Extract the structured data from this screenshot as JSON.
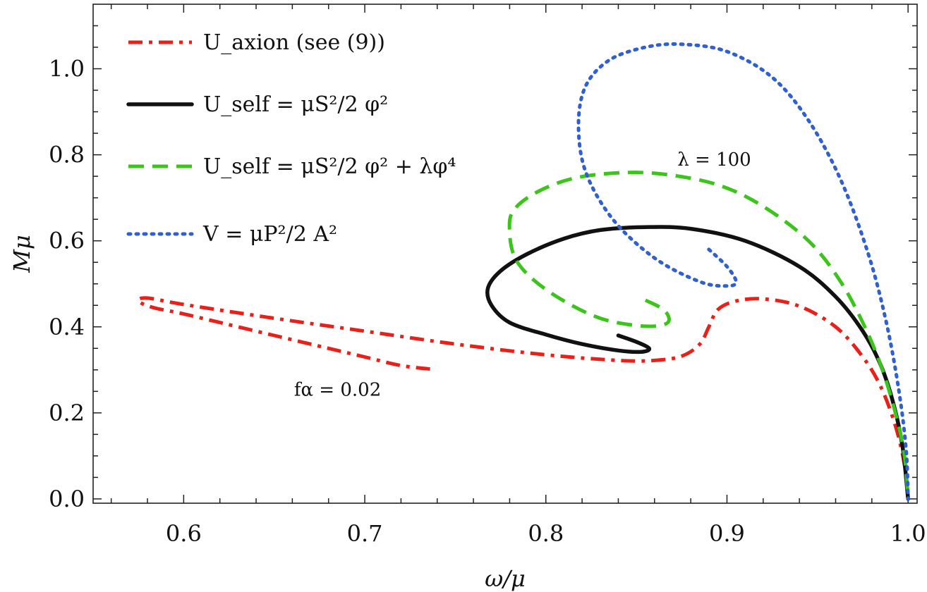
{
  "chart_data": {
    "type": "line",
    "xlabel": "ω/μ",
    "ylabel": "Mμ",
    "xlim": [
      0.55,
      1.005
    ],
    "ylim": [
      -0.01,
      1.15
    ],
    "xticks": [
      0.6,
      0.7,
      0.8,
      0.9,
      1.0
    ],
    "xtick_labels": [
      "0.6",
      "0.7",
      "0.8",
      "0.9",
      "1.0"
    ],
    "yticks": [
      0.0,
      0.2,
      0.4,
      0.6,
      0.8,
      1.0
    ],
    "ytick_labels": [
      "0.0",
      "0.2",
      "0.4",
      "0.6",
      "0.8",
      "1.0"
    ],
    "legend_position": "top-left",
    "annotations": [
      {
        "text": "λ = 100",
        "x": 0.893,
        "y": 0.775
      },
      {
        "text": "fα = 0.02",
        "x": 0.685,
        "y": 0.24
      }
    ],
    "series": [
      {
        "name": "U_axion (see (9))",
        "color": "#e8201a",
        "style": "dashdot",
        "x": [
          0.736,
          0.72,
          0.7,
          0.67,
          0.63,
          0.6,
          0.583,
          0.575,
          0.58,
          0.6,
          0.65,
          0.7,
          0.75,
          0.8,
          0.84,
          0.86,
          0.875,
          0.885,
          0.89,
          0.895,
          0.905,
          0.92,
          0.94,
          0.96,
          0.975,
          0.985,
          0.993,
          0.998,
          1.0
        ],
        "y": [
          0.302,
          0.31,
          0.33,
          0.36,
          0.4,
          0.43,
          0.445,
          0.46,
          0.467,
          0.452,
          0.42,
          0.39,
          0.36,
          0.335,
          0.322,
          0.322,
          0.332,
          0.36,
          0.4,
          0.44,
          0.46,
          0.465,
          0.448,
          0.4,
          0.33,
          0.26,
          0.17,
          0.08,
          0.0
        ]
      },
      {
        "name": "U_self = μS²/2 φ²",
        "color": "#111111",
        "style": "solid",
        "x": [
          0.84,
          0.85,
          0.857,
          0.853,
          0.84,
          0.82,
          0.8,
          0.78,
          0.77,
          0.768,
          0.775,
          0.79,
          0.81,
          0.83,
          0.855,
          0.88,
          0.91,
          0.94,
          0.96,
          0.975,
          0.985,
          0.992,
          0.997,
          1.0
        ],
        "y": [
          0.38,
          0.365,
          0.35,
          0.342,
          0.345,
          0.36,
          0.382,
          0.41,
          0.45,
          0.49,
          0.53,
          0.57,
          0.605,
          0.625,
          0.632,
          0.628,
          0.6,
          0.54,
          0.47,
          0.39,
          0.31,
          0.22,
          0.12,
          0.0
        ]
      },
      {
        "name": "U_self = μS²/2 φ² + λφ⁴",
        "color": "#3cc41c",
        "style": "dashed",
        "x": [
          0.855,
          0.865,
          0.868,
          0.863,
          0.85,
          0.83,
          0.81,
          0.793,
          0.783,
          0.78,
          0.782,
          0.795,
          0.815,
          0.84,
          0.865,
          0.895,
          0.92,
          0.945,
          0.962,
          0.975,
          0.985,
          0.993,
          0.998,
          1.0
        ],
        "y": [
          0.462,
          0.44,
          0.415,
          0.403,
          0.403,
          0.42,
          0.46,
          0.51,
          0.56,
          0.62,
          0.67,
          0.713,
          0.745,
          0.758,
          0.755,
          0.73,
          0.68,
          0.6,
          0.51,
          0.41,
          0.31,
          0.2,
          0.1,
          0.0
        ]
      },
      {
        "name": "V = μP²/2 A²",
        "color": "#2f5fd0",
        "style": "dotted",
        "x": [
          0.89,
          0.9,
          0.905,
          0.9,
          0.885,
          0.86,
          0.837,
          0.822,
          0.818,
          0.822,
          0.835,
          0.855,
          0.875,
          0.9,
          0.925,
          0.945,
          0.963,
          0.978,
          0.988,
          0.995,
          0.999,
          1.0
        ],
        "y": [
          0.58,
          0.54,
          0.505,
          0.495,
          0.505,
          0.56,
          0.65,
          0.76,
          0.87,
          0.96,
          1.02,
          1.05,
          1.057,
          1.04,
          0.98,
          0.88,
          0.74,
          0.57,
          0.41,
          0.25,
          0.11,
          0.0
        ]
      }
    ]
  }
}
